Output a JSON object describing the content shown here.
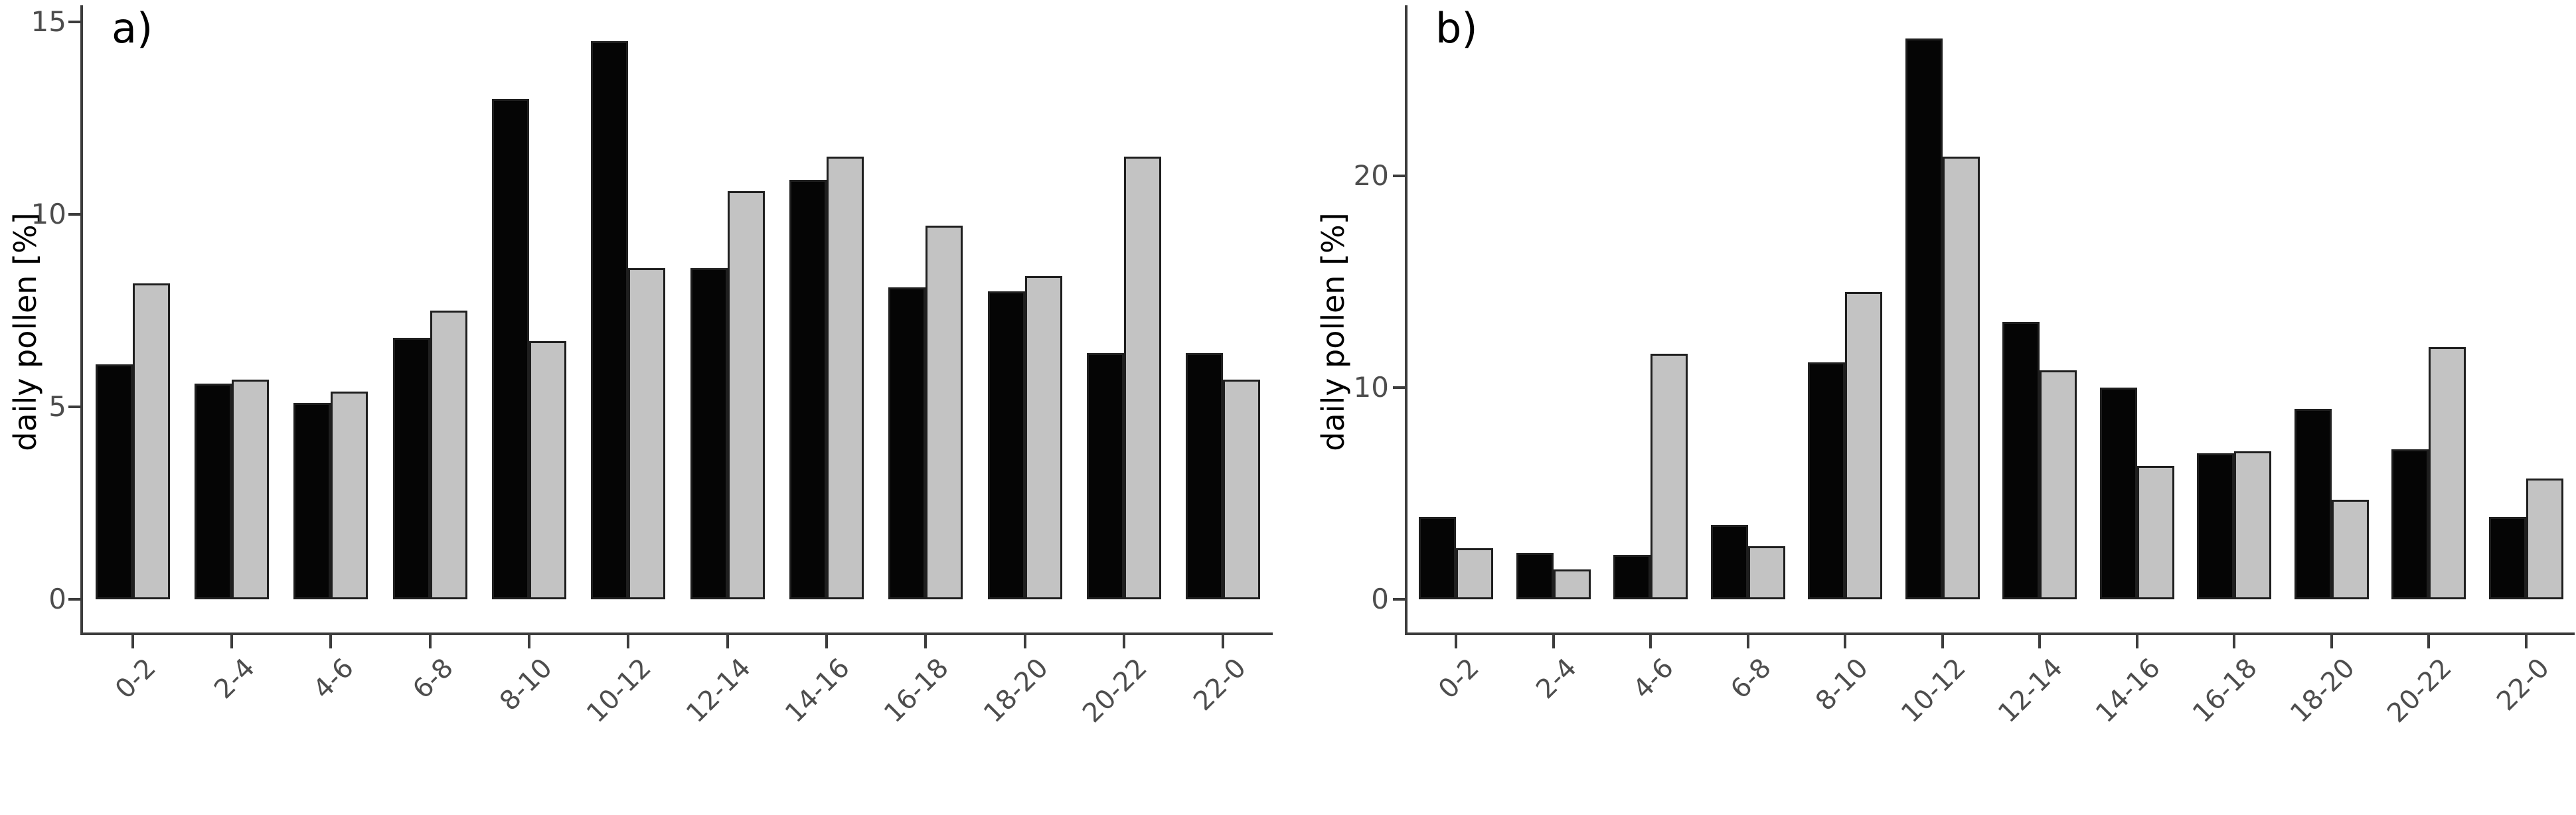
{
  "figure_title": "",
  "chart_data": [
    {
      "type": "bar",
      "panel_label": "a)",
      "ylabel": "daily pollen [%]",
      "xlabel": "",
      "categories": [
        "0-2",
        "2-4",
        "4-6",
        "6-8",
        "8-10",
        "10-12",
        "12-14",
        "14-16",
        "16-18",
        "18-20",
        "20-22",
        "22-0"
      ],
      "series": [
        {
          "name": "black-bars",
          "color": "#050505",
          "values": [
            6.1,
            5.6,
            5.1,
            6.8,
            13.0,
            14.5,
            8.6,
            10.9,
            8.1,
            8.0,
            6.4,
            6.4
          ]
        },
        {
          "name": "grey-bars",
          "color": "#c3c3c3",
          "values": [
            8.2,
            5.7,
            5.4,
            7.5,
            6.7,
            8.6,
            10.6,
            11.5,
            9.7,
            8.4,
            11.5,
            5.7
          ]
        }
      ],
      "y_ticks": [
        0,
        5,
        10,
        15
      ],
      "ylim": [
        0,
        15.5
      ],
      "grid": "off",
      "legend": "none",
      "bar_outline_color": "#1f1f1f"
    },
    {
      "type": "bar",
      "panel_label": "b)",
      "ylabel": "daily pollen [%]",
      "xlabel": "",
      "categories": [
        "0-2",
        "2-4",
        "4-6",
        "6-8",
        "8-10",
        "10-12",
        "12-14",
        "14-16",
        "16-18",
        "18-20",
        "20-22",
        "22-0"
      ],
      "series": [
        {
          "name": "black-bars",
          "color": "#050505",
          "values": [
            3.9,
            2.2,
            2.1,
            3.5,
            11.2,
            26.5,
            13.1,
            10.0,
            6.9,
            9.0,
            7.1,
            3.9
          ]
        },
        {
          "name": "grey-bars",
          "color": "#c3c3c3",
          "values": [
            2.4,
            1.4,
            11.6,
            2.5,
            14.5,
            20.9,
            10.8,
            6.3,
            7.0,
            4.7,
            11.9,
            5.7
          ]
        }
      ],
      "y_ticks": [
        0,
        10,
        20
      ],
      "ylim": [
        0,
        28
      ],
      "grid": "off",
      "legend": "none",
      "bar_outline_color": "#1f1f1f"
    }
  ],
  "axis_colors": {
    "axis_line": "#3c3c3c",
    "tick_label": "#4d4d4d",
    "axis_title": "#000000"
  }
}
